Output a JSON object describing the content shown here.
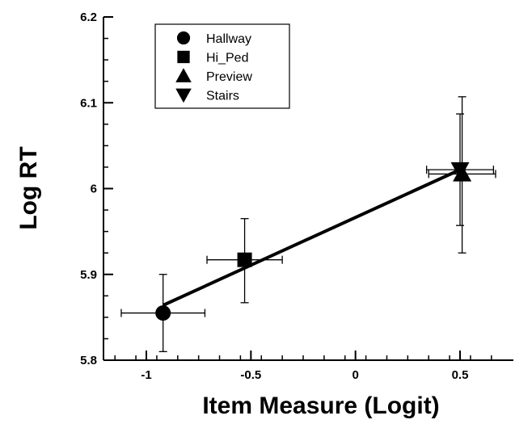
{
  "chart_data": {
    "type": "scatter",
    "xlabel": "Item Measure (Logit)",
    "ylabel": "Log RT",
    "xlim": [
      -1.2,
      0.75
    ],
    "ylim": [
      5.8,
      6.2
    ],
    "x_ticks": [
      -1,
      -0.5,
      0,
      0.5
    ],
    "x_tick_labels": [
      "-1",
      "-0.5",
      "0",
      "0.5"
    ],
    "y_ticks": [
      5.8,
      5.9,
      6.0,
      6.1,
      6.2
    ],
    "y_tick_labels": [
      "5.8",
      "5.9",
      "6",
      "6.1",
      "6.2"
    ],
    "legend_position": "top-left",
    "series": [
      {
        "name": "Hallway",
        "marker": "circle",
        "x": -0.92,
        "y": 5.855,
        "x_err": [
          0.2,
          0.2
        ],
        "y_err": [
          0.045,
          0.045
        ]
      },
      {
        "name": "Hi_Ped",
        "marker": "square",
        "x": -0.53,
        "y": 5.917,
        "x_err": [
          0.18,
          0.18
        ],
        "y_err": [
          0.05,
          0.048
        ]
      },
      {
        "name": "Preview",
        "marker": "triangle-up",
        "x": 0.51,
        "y": 6.017,
        "x_err": [
          0.16,
          0.16
        ],
        "y_err": [
          0.092,
          0.09
        ]
      },
      {
        "name": "Stairs",
        "marker": "triangle-down",
        "x": 0.5,
        "y": 6.022,
        "x_err": [
          0.16,
          0.16
        ],
        "y_err": [
          0.065,
          0.065
        ]
      }
    ],
    "fit_line": {
      "x": [
        -0.92,
        0.5
      ],
      "y": [
        5.864,
        6.022
      ]
    }
  }
}
